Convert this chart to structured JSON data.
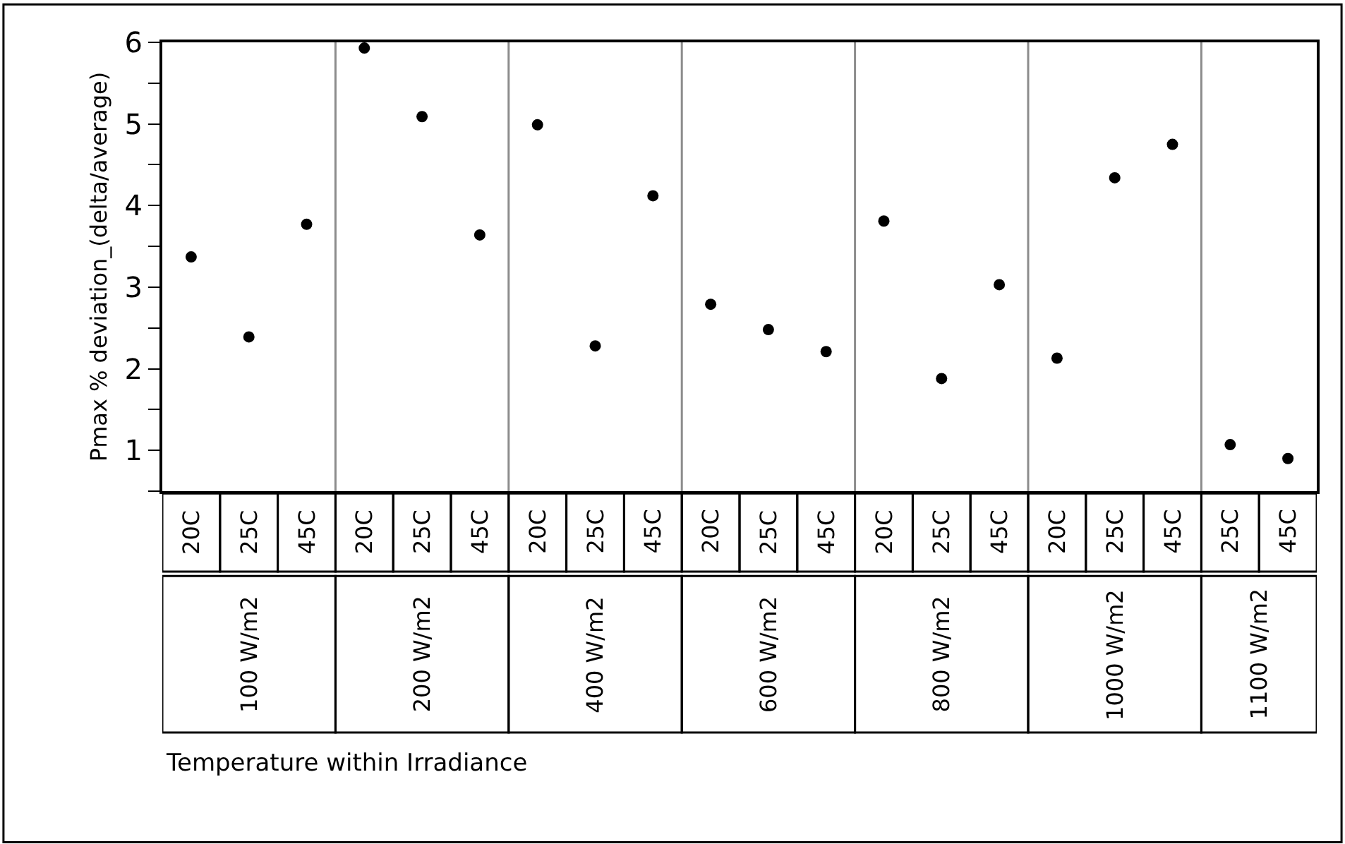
{
  "chart_data": {
    "type": "scatter",
    "annotations": [
      "Temperature within Irradiance"
    ],
    "ylabel": "Pmax % deviation_(delta/average)",
    "categories": [
      [
        "100 W/m2",
        "20C"
      ],
      [
        null,
        "25C"
      ],
      [
        null,
        "45C"
      ],
      [
        "200 W/m2",
        "20C"
      ],
      [
        null,
        "25C"
      ],
      [
        null,
        "45C"
      ],
      [
        "400 W/m2",
        "20C"
      ],
      [
        null,
        "25C"
      ],
      [
        null,
        "45C"
      ],
      [
        "600 W/m2",
        "20C"
      ],
      [
        null,
        "25C"
      ],
      [
        null,
        "45C"
      ],
      [
        "800 W/m2",
        "20C"
      ],
      [
        null,
        "25C"
      ],
      [
        null,
        "45C"
      ],
      [
        "1000 W/m2",
        "20C"
      ],
      [
        null,
        "25C"
      ],
      [
        null,
        "45C"
      ],
      [
        "1100 W/m2",
        "25C"
      ],
      [
        null,
        "45C"
      ]
    ],
    "series": [
      {
        "color": "#000000",
        "values": [
          3.37,
          2.39,
          3.77,
          5.93,
          5.09,
          3.64,
          4.99,
          2.28,
          4.12,
          2.79,
          2.48,
          2.21,
          3.81,
          1.88,
          3.03,
          2.13,
          4.34,
          4.75,
          1.07,
          0.9
        ]
      }
    ],
    "ylim": [
      0.5,
      6.0
    ],
    "yticks": [
      {
        "value": 0.5,
        "label": null
      },
      1,
      {
        "value": 1.5,
        "label": null
      },
      2,
      {
        "value": 2.5,
        "label": null
      },
      3,
      {
        "value": 3.5,
        "label": null
      },
      4,
      {
        "value": 4.5,
        "label": null
      },
      5,
      {
        "value": 5.5,
        "label": null
      },
      6
    ],
    "marker": "circle",
    "grid": false,
    "legend": false
  }
}
